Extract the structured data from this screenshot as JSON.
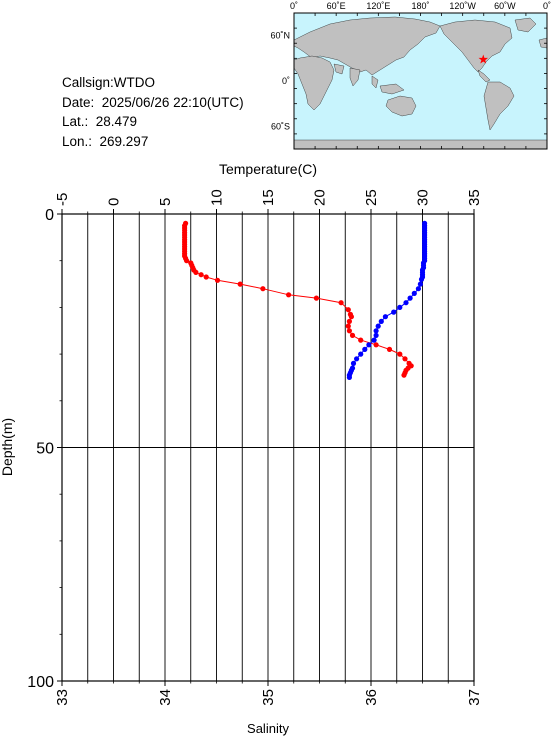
{
  "info": {
    "callsign": "Callsign:WTDO",
    "date": "Date:  2025/06/26 22:10(UTC)",
    "lat": "Lat.:  28.479",
    "lon": "Lon.:  269.297"
  },
  "map": {
    "top_ticks": [
      "0˚",
      "60˚E",
      "120˚E",
      "180˚",
      "120˚W",
      "60˚W",
      "0˚"
    ],
    "lat_ticks": [
      "60˚N",
      "0˚",
      "60˚S"
    ],
    "ocean_color": "#c8f4fd",
    "land_color": "#c0c0c0",
    "station_lat": 28.479,
    "station_lon": 269.297,
    "marker_color": "#ff0000"
  },
  "chart_data": {
    "type": "line",
    "xlabel_top": "Temperature(C)",
    "xlabel_bottom": "Salinity",
    "ylabel": "Depth(m)",
    "temp_range": [
      -5,
      35
    ],
    "temp_ticks": [
      "-5",
      "0",
      "5",
      "10",
      "15",
      "20",
      "25",
      "30",
      "35"
    ],
    "sal_range": [
      33,
      37
    ],
    "sal_ticks": [
      "33",
      "34",
      "35",
      "36",
      "37"
    ],
    "depth_range": [
      0,
      100
    ],
    "depth_ticks": [
      "0",
      "50",
      "100"
    ],
    "series": [
      {
        "color": "#ff0000",
        "axis": "temperature",
        "points": [
          [
            7.0,
            2
          ],
          [
            6.9,
            2.5
          ],
          [
            6.9,
            3
          ],
          [
            6.9,
            3.5
          ],
          [
            6.9,
            4
          ],
          [
            6.9,
            4.5
          ],
          [
            6.9,
            5
          ],
          [
            6.9,
            5.5
          ],
          [
            6.9,
            6
          ],
          [
            6.9,
            6.5
          ],
          [
            6.9,
            7
          ],
          [
            6.9,
            7.5
          ],
          [
            6.9,
            8
          ],
          [
            6.9,
            8.5
          ],
          [
            6.9,
            9
          ],
          [
            7.0,
            9.5
          ],
          [
            7.1,
            10
          ],
          [
            7.5,
            10.5
          ],
          [
            7.6,
            11
          ],
          [
            7.7,
            11.5
          ],
          [
            7.8,
            12
          ],
          [
            8.0,
            12.5
          ],
          [
            8.5,
            13
          ],
          [
            9.0,
            13.5
          ],
          [
            10.1,
            14.2
          ],
          [
            12.3,
            15
          ],
          [
            14.5,
            16
          ],
          [
            17.0,
            17.3
          ],
          [
            19.7,
            18
          ],
          [
            22.1,
            19
          ],
          [
            22.8,
            20.5
          ],
          [
            23.0,
            21.5
          ],
          [
            23.1,
            22
          ],
          [
            22.9,
            23
          ],
          [
            22.8,
            24
          ],
          [
            22.9,
            25
          ],
          [
            23.2,
            26
          ],
          [
            24.0,
            27
          ],
          [
            25.5,
            28
          ],
          [
            26.8,
            29
          ],
          [
            27.8,
            30
          ],
          [
            28.3,
            31
          ],
          [
            28.7,
            32
          ],
          [
            28.9,
            32.5
          ],
          [
            28.6,
            33
          ],
          [
            28.4,
            33.5
          ],
          [
            28.3,
            34
          ],
          [
            28.2,
            34.5
          ]
        ]
      },
      {
        "color": "#0000ff",
        "axis": "salinity",
        "points": [
          [
            36.52,
            2
          ],
          [
            36.52,
            2.5
          ],
          [
            36.52,
            3
          ],
          [
            36.52,
            3.5
          ],
          [
            36.52,
            4
          ],
          [
            36.52,
            4.5
          ],
          [
            36.52,
            5
          ],
          [
            36.52,
            5.5
          ],
          [
            36.52,
            6
          ],
          [
            36.52,
            6.5
          ],
          [
            36.52,
            7
          ],
          [
            36.52,
            7.5
          ],
          [
            36.52,
            8
          ],
          [
            36.52,
            8.5
          ],
          [
            36.52,
            9
          ],
          [
            36.52,
            9.5
          ],
          [
            36.52,
            10
          ],
          [
            36.51,
            10.5
          ],
          [
            36.51,
            11
          ],
          [
            36.51,
            11.5
          ],
          [
            36.5,
            12
          ],
          [
            36.5,
            12.5
          ],
          [
            36.5,
            13
          ],
          [
            36.5,
            13.5
          ],
          [
            36.49,
            14
          ],
          [
            36.48,
            15
          ],
          [
            36.46,
            16
          ],
          [
            36.42,
            17
          ],
          [
            36.38,
            18
          ],
          [
            36.34,
            19
          ],
          [
            36.28,
            20
          ],
          [
            36.22,
            21
          ],
          [
            36.14,
            22
          ],
          [
            36.1,
            23
          ],
          [
            36.07,
            24
          ],
          [
            36.05,
            25
          ],
          [
            36.05,
            26
          ],
          [
            36.03,
            27
          ],
          [
            35.98,
            28
          ],
          [
            35.94,
            29
          ],
          [
            35.9,
            30
          ],
          [
            35.86,
            31
          ],
          [
            35.83,
            32
          ],
          [
            35.82,
            33
          ],
          [
            35.81,
            33.5
          ],
          [
            35.8,
            34
          ],
          [
            35.79,
            34.5
          ],
          [
            35.79,
            35
          ]
        ]
      }
    ],
    "grid": true
  }
}
